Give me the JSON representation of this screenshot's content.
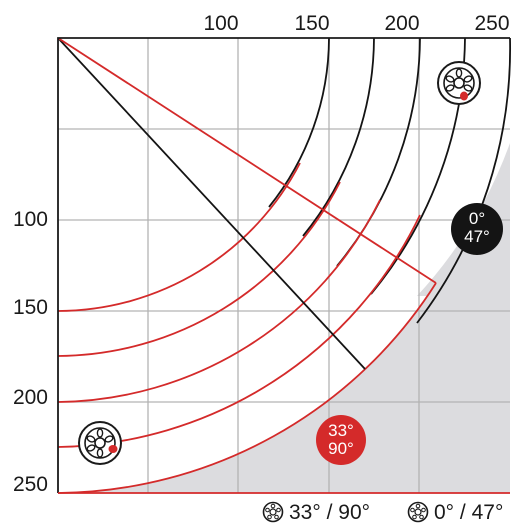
{
  "colors": {
    "accent_red": "#d42a2a",
    "dark": "#141414",
    "grid": "#b3b3b3",
    "shade": "#dcdcdf",
    "frame": "#1a1a1a"
  },
  "axes": {
    "x_ticks": [
      "100",
      "150",
      "200",
      "250"
    ],
    "y_ticks": [
      "100",
      "150",
      "200",
      "250"
    ]
  },
  "badges": {
    "black": {
      "line1": "0°",
      "line2": "47°",
      "color": "#141414"
    },
    "red": {
      "line1": "33°",
      "line2": "90°",
      "color": "#d42a2a"
    }
  },
  "icons": {
    "top_right": "lamp-head-icon",
    "bottom_left": "lamp-head-icon",
    "legend": "lamp-head-icon"
  },
  "legend": {
    "item1": "33° / 90°",
    "item2": "0° / 47°"
  }
}
